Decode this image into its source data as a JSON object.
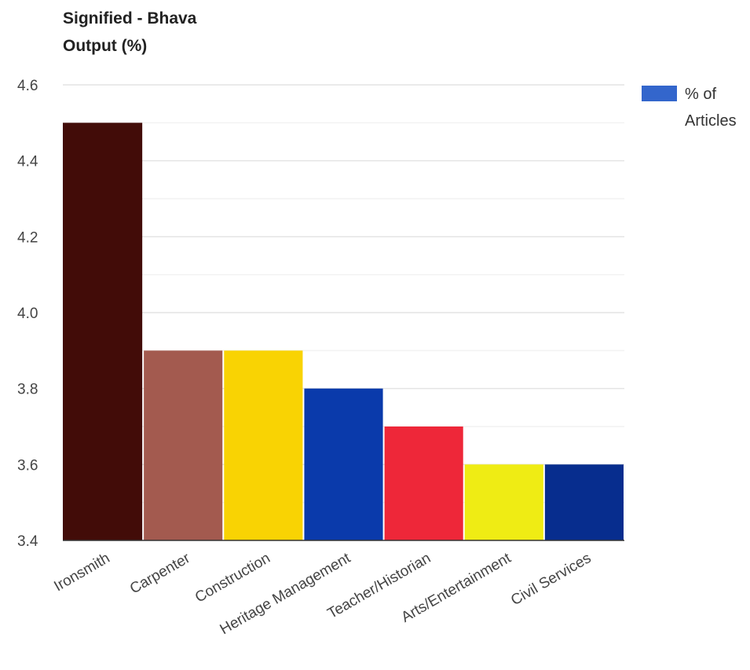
{
  "chart_data": {
    "type": "bar",
    "title": [
      "Signified - Bhava",
      "Output (%)"
    ],
    "categories": [
      "Ironsmith",
      "Carpenter",
      "Construction",
      "Heritage Management",
      "Teacher/Historian",
      "Arts/Entertainment",
      "Civil Services"
    ],
    "series": [
      {
        "name": "% of Articles",
        "legend_lines": [
          "% of",
          "Articles"
        ],
        "legend_color": "#3366cc",
        "values": [
          4.5,
          3.9,
          3.9,
          3.8,
          3.7,
          3.6,
          3.6
        ],
        "bar_colors": [
          "#420c08",
          "#a35a4f",
          "#f9d303",
          "#0a3aab",
          "#ee2739",
          "#efec14",
          "#072d8e"
        ]
      }
    ],
    "ylim": [
      3.4,
      4.6
    ],
    "y_ticks": [
      "3.4",
      "3.6",
      "3.8",
      "4.0",
      "4.2",
      "4.4",
      "4.6"
    ],
    "grid": true,
    "legend_position": "right"
  }
}
